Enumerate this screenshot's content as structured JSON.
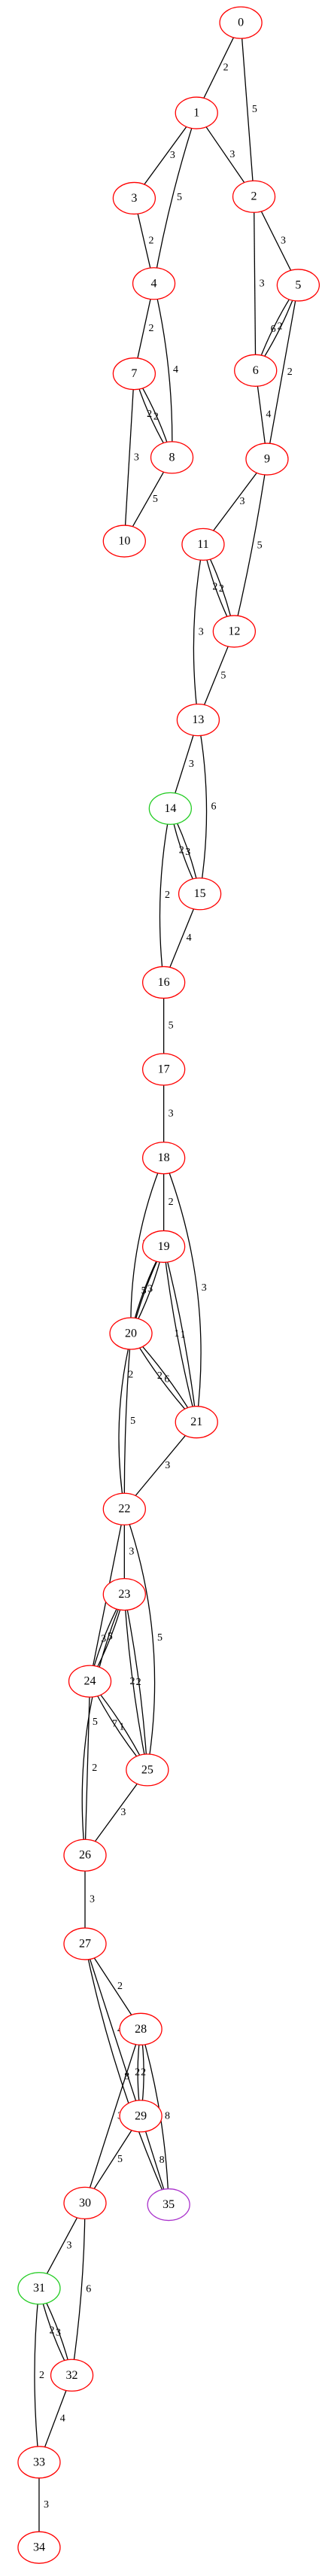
{
  "nodes": [
    {
      "label": "0",
      "color": "red"
    },
    {
      "label": "1",
      "color": "red"
    },
    {
      "label": "2",
      "color": "red"
    },
    {
      "label": "3",
      "color": "red"
    },
    {
      "label": "4",
      "color": "red"
    },
    {
      "label": "5",
      "color": "red"
    },
    {
      "label": "6",
      "color": "red"
    },
    {
      "label": "7",
      "color": "red"
    },
    {
      "label": "8",
      "color": "red"
    },
    {
      "label": "9",
      "color": "red"
    },
    {
      "label": "10",
      "color": "red"
    },
    {
      "label": "11",
      "color": "red"
    },
    {
      "label": "12",
      "color": "red"
    },
    {
      "label": "13",
      "color": "red"
    },
    {
      "label": "14",
      "color": "#22cc22"
    },
    {
      "label": "15",
      "color": "red"
    },
    {
      "label": "16",
      "color": "red"
    },
    {
      "label": "17",
      "color": "red"
    },
    {
      "label": "18",
      "color": "red"
    },
    {
      "label": "19",
      "color": "red"
    },
    {
      "label": "20",
      "color": "red"
    },
    {
      "label": "21",
      "color": "red"
    },
    {
      "label": "22",
      "color": "red"
    },
    {
      "label": "23",
      "color": "red"
    },
    {
      "label": "24",
      "color": "red"
    },
    {
      "label": "25",
      "color": "red"
    },
    {
      "label": "26",
      "color": "red"
    },
    {
      "label": "27",
      "color": "red"
    },
    {
      "label": "28",
      "color": "red"
    },
    {
      "label": "29",
      "color": "red"
    },
    {
      "label": "30",
      "color": "red"
    },
    {
      "label": "31",
      "color": "#22cc22"
    },
    {
      "label": "32",
      "color": "red"
    },
    {
      "label": "33",
      "color": "red"
    },
    {
      "label": "34",
      "color": "red"
    },
    {
      "label": "35",
      "color": "#aa33cc"
    }
  ],
  "edges": [
    {
      "source": "0",
      "target": "1",
      "label": "2"
    },
    {
      "source": "0",
      "target": "2",
      "label": "5"
    },
    {
      "source": "1",
      "target": "2",
      "label": "3"
    },
    {
      "source": "1",
      "target": "3",
      "label": "3"
    },
    {
      "source": "1",
      "target": "4",
      "label": "5"
    },
    {
      "source": "3",
      "target": "4",
      "label": "2"
    },
    {
      "source": "2",
      "target": "5",
      "label": "3"
    },
    {
      "source": "2",
      "target": "6",
      "label": "3"
    },
    {
      "source": "4",
      "target": "7",
      "label": "2"
    },
    {
      "source": "4",
      "target": "8",
      "label": "4"
    },
    {
      "source": "5",
      "target": "6",
      "label": "6"
    },
    {
      "source": "5",
      "target": "6",
      "label": "2"
    },
    {
      "source": "5",
      "target": "9",
      "label": "2"
    },
    {
      "source": "6",
      "target": "9",
      "label": "4"
    },
    {
      "source": "7",
      "target": "8",
      "label": "2"
    },
    {
      "source": "7",
      "target": "8",
      "label": "2"
    },
    {
      "source": "7",
      "target": "10",
      "label": "3"
    },
    {
      "source": "8",
      "target": "10",
      "label": "5"
    },
    {
      "source": "9",
      "target": "11",
      "label": "3"
    },
    {
      "source": "9",
      "target": "12",
      "label": "5"
    },
    {
      "source": "11",
      "target": "12",
      "label": "2"
    },
    {
      "source": "11",
      "target": "12",
      "label": "2"
    },
    {
      "source": "11",
      "target": "13",
      "label": "3"
    },
    {
      "source": "12",
      "target": "13",
      "label": "5"
    },
    {
      "source": "13",
      "target": "14",
      "label": "3"
    },
    {
      "source": "13",
      "target": "15",
      "label": "6"
    },
    {
      "source": "14",
      "target": "15",
      "label": "2"
    },
    {
      "source": "14",
      "target": "15",
      "label": "3"
    },
    {
      "source": "14",
      "target": "16",
      "label": "2"
    },
    {
      "source": "15",
      "target": "16",
      "label": "4"
    },
    {
      "source": "16",
      "target": "17",
      "label": "5"
    },
    {
      "source": "17",
      "target": "18",
      "label": "3"
    },
    {
      "source": "18",
      "target": "19",
      "label": "2"
    },
    {
      "source": "18",
      "target": "20",
      "label": "3"
    },
    {
      "source": "18",
      "target": "21",
      "label": "3"
    },
    {
      "source": "19",
      "target": "20",
      "label": "5"
    },
    {
      "source": "19",
      "target": "20",
      "label": "3"
    },
    {
      "source": "19",
      "target": "21",
      "label": "1"
    },
    {
      "source": "19",
      "target": "21",
      "label": "1"
    },
    {
      "source": "19",
      "target": "22",
      "label": "2"
    },
    {
      "source": "20",
      "target": "21",
      "label": "2"
    },
    {
      "source": "20",
      "target": "21",
      "label": "6"
    },
    {
      "source": "20",
      "target": "22",
      "label": "5"
    },
    {
      "source": "21",
      "target": "22",
      "label": "3"
    },
    {
      "source": "22",
      "target": "23",
      "label": "3"
    },
    {
      "source": "22",
      "target": "24",
      "label": "2"
    },
    {
      "source": "22",
      "target": "25",
      "label": "5"
    },
    {
      "source": "23",
      "target": "24",
      "label": "3"
    },
    {
      "source": "23",
      "target": "24",
      "label": "5"
    },
    {
      "source": "23",
      "target": "25",
      "label": "2"
    },
    {
      "source": "23",
      "target": "25",
      "label": "2"
    },
    {
      "source": "23",
      "target": "26",
      "label": "5"
    },
    {
      "source": "24",
      "target": "25",
      "label": "7"
    },
    {
      "source": "24",
      "target": "25",
      "label": "1"
    },
    {
      "source": "24",
      "target": "26",
      "label": "2"
    },
    {
      "source": "25",
      "target": "26",
      "label": "3"
    },
    {
      "source": "26",
      "target": "27",
      "label": "3"
    },
    {
      "source": "27",
      "target": "28",
      "label": "2"
    },
    {
      "source": "27",
      "target": "29",
      "label": "4"
    },
    {
      "source": "27",
      "target": "35",
      "label": "8"
    },
    {
      "source": "28",
      "target": "29",
      "label": "2"
    },
    {
      "source": "28",
      "target": "29",
      "label": "2"
    },
    {
      "source": "28",
      "target": "30",
      "label": "3"
    },
    {
      "source": "28",
      "target": "35",
      "label": "8"
    },
    {
      "source": "29",
      "target": "30",
      "label": "5"
    },
    {
      "source": "29",
      "target": "35",
      "label": "8"
    },
    {
      "source": "30",
      "target": "31",
      "label": "3"
    },
    {
      "source": "30",
      "target": "32",
      "label": "6"
    },
    {
      "source": "31",
      "target": "32",
      "label": "2"
    },
    {
      "source": "31",
      "target": "32",
      "label": "3"
    },
    {
      "source": "31",
      "target": "33",
      "label": "2"
    },
    {
      "source": "32",
      "target": "33",
      "label": "4"
    },
    {
      "source": "33",
      "target": "34",
      "label": "3"
    }
  ]
}
